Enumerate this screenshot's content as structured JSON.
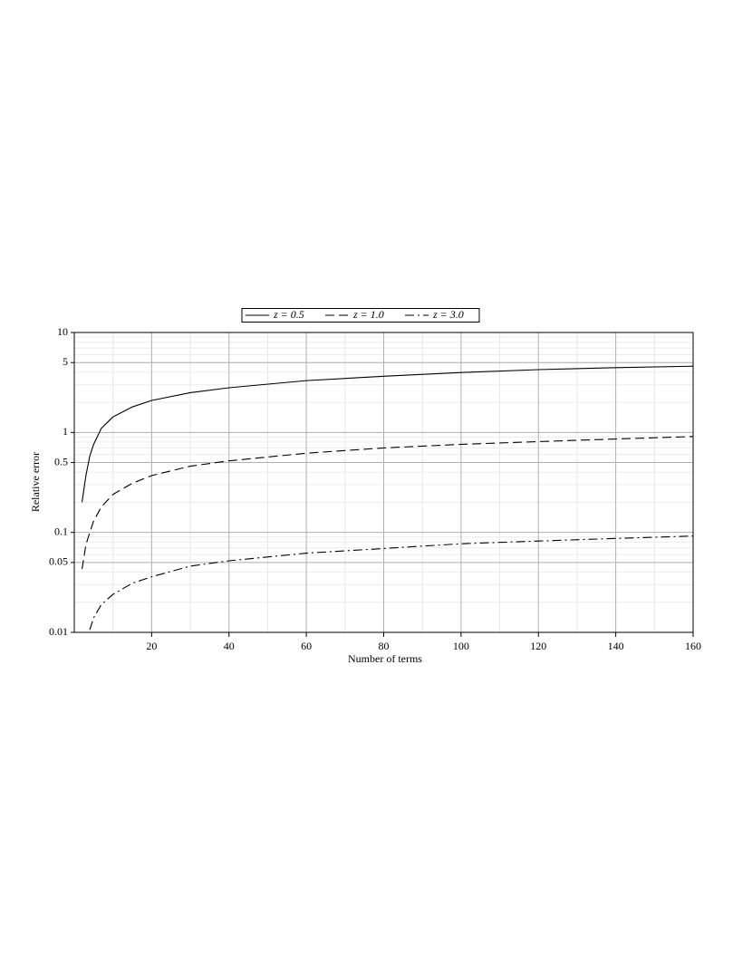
{
  "chart_data": {
    "type": "line",
    "x_label": "Number of terms",
    "y_label": "Relative error",
    "x": [
      2,
      3,
      4,
      5,
      7,
      10,
      15,
      20,
      30,
      40,
      60,
      80,
      100,
      120,
      140,
      160
    ],
    "series": [
      {
        "name": "z = 0.5",
        "color": "#000000",
        "linestyle": "solid",
        "values": [
          0.2,
          0.37,
          0.58,
          0.76,
          1.1,
          1.43,
          1.8,
          2.09,
          2.5,
          2.8,
          3.3,
          3.65,
          3.98,
          4.25,
          4.45,
          4.6
        ]
      },
      {
        "name": "z = 1.0",
        "color": "#000000",
        "linestyle": "dashed",
        "values": [
          0.043,
          0.075,
          0.1,
          0.13,
          0.18,
          0.24,
          0.31,
          0.37,
          0.46,
          0.52,
          0.62,
          0.7,
          0.76,
          0.81,
          0.86,
          0.91
        ]
      },
      {
        "name": "z = 3.0",
        "color": "#000000",
        "linestyle": "dashdot",
        "values": [
          null,
          null,
          0.0106,
          0.014,
          0.019,
          0.024,
          0.031,
          0.036,
          0.046,
          0.052,
          0.062,
          0.069,
          0.077,
          0.082,
          0.087,
          0.092
        ]
      }
    ],
    "xlim": [
      0,
      160
    ],
    "xticks": [
      20,
      40,
      60,
      80,
      100,
      120,
      140,
      160
    ],
    "ylim": [
      0.01,
      10
    ],
    "yticks": [
      0.01,
      0.05,
      0.1,
      0.5,
      1,
      5,
      10
    ],
    "yscale": "log",
    "grid": true,
    "legend": "top"
  }
}
